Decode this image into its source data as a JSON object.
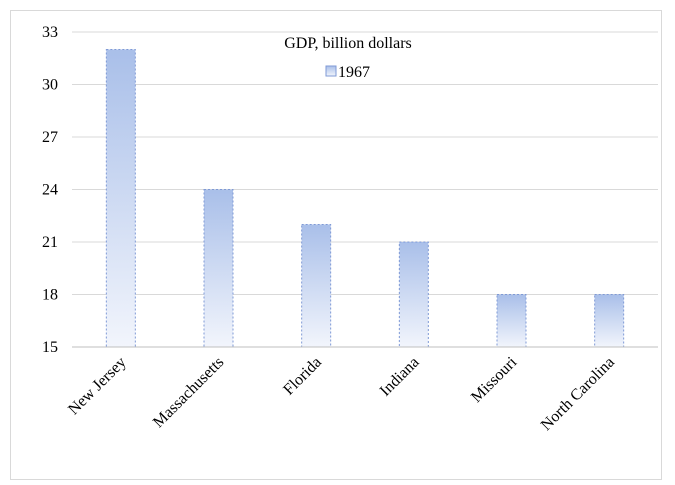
{
  "chart_data": {
    "type": "bar",
    "title": "GDP, billion dollars",
    "categories": [
      "New Jersey",
      "Massachusetts",
      "Florida",
      "Indiana",
      "Missouri",
      "North Carolina"
    ],
    "series": [
      {
        "name": "1967",
        "values": [
          32,
          24,
          22,
          21,
          18,
          18
        ]
      }
    ],
    "ylim": [
      15,
      33
    ],
    "yticks": [
      "15",
      "18",
      "21",
      "24",
      "27",
      "30",
      "33"
    ],
    "grid": true,
    "legend_position": "top-center",
    "colors": {
      "bar_top": "#a9bfe9",
      "bar_bottom": "#f2f5fc",
      "bar_border": "#7f9ad6",
      "grid": "#d9d9d9",
      "axis": "#bfbfbf"
    }
  }
}
